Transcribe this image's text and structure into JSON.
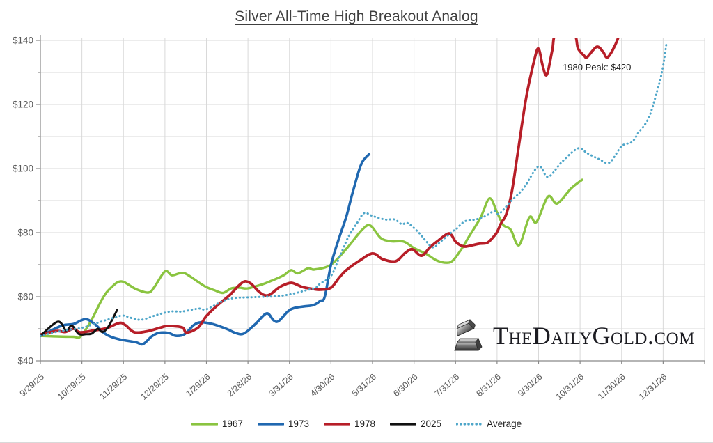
{
  "title": "Silver All-Time High Breakout Analog",
  "watermark": {
    "text": "TheDailyGold.com",
    "icon": "gold-ingot-icon"
  },
  "chart_data": {
    "type": "line",
    "title": "Silver All-Time High Breakout Analog",
    "xlabel": "",
    "ylabel": "",
    "x_unit": "months since 9/29/25",
    "xlim_months": [
      0,
      16
    ],
    "ylim": [
      40,
      140
    ],
    "y_major_step": 20,
    "y_minor_step": 10,
    "grid": "on",
    "legend_position": "bottom",
    "y_tick_labels": [
      "$40",
      "$60",
      "$80",
      "$100",
      "$120",
      "$140"
    ],
    "x_tick_labels": [
      "9/29/25",
      "10/29/25",
      "11/29/25",
      "12/29/25",
      "1/29/26",
      "2/28/26",
      "3/31/26",
      "4/30/26",
      "5/31/26",
      "6/30/26",
      "7/31/26",
      "8/31/26",
      "9/30/26",
      "10/31/26",
      "11/30/26",
      "12/31/26"
    ],
    "annotation": {
      "text": "1980 Peak: $420",
      "month": 12.58,
      "value": 130.6
    },
    "series": [
      {
        "name": "1967",
        "color": "#8AC440",
        "style": "solid",
        "width": 3.4,
        "points": [
          [
            0,
            47.8
          ],
          [
            0.4,
            47.6
          ],
          [
            0.8,
            47.5
          ],
          [
            0.96,
            47.5
          ],
          [
            1.2,
            52
          ],
          [
            1.5,
            59.5
          ],
          [
            1.7,
            62.8
          ],
          [
            1.95,
            64.8
          ],
          [
            2.3,
            62.4
          ],
          [
            2.6,
            61.3
          ],
          [
            2.75,
            63.1
          ],
          [
            3.0,
            67.9
          ],
          [
            3.17,
            66.7
          ],
          [
            3.35,
            67.3
          ],
          [
            3.5,
            67.2
          ],
          [
            3.8,
            64.6
          ],
          [
            4.0,
            63.0
          ],
          [
            4.2,
            62.0
          ],
          [
            4.4,
            61.2
          ],
          [
            4.6,
            62.6
          ],
          [
            4.8,
            62.8
          ],
          [
            5.0,
            62.6
          ],
          [
            5.35,
            63.9
          ],
          [
            5.57,
            65.0
          ],
          [
            5.86,
            66.7
          ],
          [
            6.04,
            68.3
          ],
          [
            6.2,
            67.3
          ],
          [
            6.45,
            68.9
          ],
          [
            6.6,
            68.5
          ],
          [
            7.0,
            70.0
          ],
          [
            7.4,
            75.4
          ],
          [
            7.75,
            80.9
          ],
          [
            7.95,
            82.2
          ],
          [
            8.2,
            78.3
          ],
          [
            8.45,
            77.3
          ],
          [
            8.75,
            77.2
          ],
          [
            9.0,
            75.2
          ],
          [
            9.3,
            73.3
          ],
          [
            9.55,
            71.3
          ],
          [
            9.8,
            70.6
          ],
          [
            9.95,
            71.5
          ],
          [
            10.15,
            75.0
          ],
          [
            10.32,
            78.7
          ],
          [
            10.6,
            84.6
          ],
          [
            10.82,
            90.7
          ],
          [
            11.0,
            86.3
          ],
          [
            11.15,
            82.4
          ],
          [
            11.33,
            80.9
          ],
          [
            11.53,
            76.1
          ],
          [
            11.78,
            84.8
          ],
          [
            11.95,
            83.3
          ],
          [
            12.23,
            91.3
          ],
          [
            12.45,
            89.1
          ],
          [
            12.79,
            93.9
          ],
          [
            13.05,
            96.5
          ]
        ]
      },
      {
        "name": "1973",
        "color": "#2068B0",
        "style": "solid",
        "width": 3.6,
        "points": [
          [
            0,
            47.8
          ],
          [
            0.5,
            50.9
          ],
          [
            0.8,
            51.5
          ],
          [
            1.09,
            53.0
          ],
          [
            1.34,
            51.1
          ],
          [
            1.51,
            48.9
          ],
          [
            1.68,
            47.6
          ],
          [
            1.91,
            46.7
          ],
          [
            2.3,
            45.8
          ],
          [
            2.47,
            45.2
          ],
          [
            2.68,
            47.6
          ],
          [
            2.85,
            48.7
          ],
          [
            3.09,
            48.7
          ],
          [
            3.26,
            47.8
          ],
          [
            3.47,
            48.3
          ],
          [
            3.69,
            51.1
          ],
          [
            3.86,
            52.0
          ],
          [
            4.14,
            51.5
          ],
          [
            4.48,
            50.0
          ],
          [
            4.7,
            48.7
          ],
          [
            4.9,
            48.5
          ],
          [
            5.18,
            51.5
          ],
          [
            5.45,
            54.8
          ],
          [
            5.62,
            52.6
          ],
          [
            5.74,
            52.4
          ],
          [
            5.96,
            55.4
          ],
          [
            6.12,
            56.5
          ],
          [
            6.36,
            57.0
          ],
          [
            6.58,
            57.4
          ],
          [
            6.74,
            58.7
          ],
          [
            6.85,
            60.0
          ],
          [
            7.0,
            70.0
          ],
          [
            7.2,
            78.5
          ],
          [
            7.37,
            85.0
          ],
          [
            7.5,
            91.5
          ],
          [
            7.62,
            97.0
          ],
          [
            7.7,
            100.4
          ],
          [
            7.78,
            102.6
          ],
          [
            7.92,
            104.5
          ]
        ]
      },
      {
        "name": "1978",
        "color": "#B71E28",
        "style": "solid",
        "width": 3.8,
        "points": [
          [
            0,
            48.2
          ],
          [
            0.4,
            49.3
          ],
          [
            0.6,
            49.0
          ],
          [
            0.8,
            50.0
          ],
          [
            0.96,
            48.9
          ],
          [
            1.3,
            49.5
          ],
          [
            1.6,
            50.2
          ],
          [
            1.9,
            51.8
          ],
          [
            2.05,
            51.1
          ],
          [
            2.27,
            48.9
          ],
          [
            2.6,
            49.3
          ],
          [
            2.9,
            50.4
          ],
          [
            3.09,
            50.9
          ],
          [
            3.42,
            50.4
          ],
          [
            3.52,
            48.8
          ],
          [
            3.8,
            50.4
          ],
          [
            4.0,
            54.0
          ],
          [
            4.28,
            57.5
          ],
          [
            4.56,
            60.5
          ],
          [
            4.78,
            63.5
          ],
          [
            4.93,
            64.8
          ],
          [
            5.07,
            64.1
          ],
          [
            5.23,
            62.0
          ],
          [
            5.37,
            60.6
          ],
          [
            5.52,
            60.6
          ],
          [
            5.74,
            62.8
          ],
          [
            5.91,
            63.9
          ],
          [
            6.07,
            64.3
          ],
          [
            6.32,
            63.0
          ],
          [
            6.58,
            62.4
          ],
          [
            6.74,
            62.2
          ],
          [
            7.0,
            62.8
          ],
          [
            7.2,
            66.0
          ],
          [
            7.37,
            68.3
          ],
          [
            7.67,
            71.1
          ],
          [
            8.0,
            73.5
          ],
          [
            8.25,
            71.7
          ],
          [
            8.56,
            71.1
          ],
          [
            8.79,
            73.7
          ],
          [
            8.96,
            74.8
          ],
          [
            9.18,
            72.8
          ],
          [
            9.38,
            75.4
          ],
          [
            9.55,
            77.2
          ],
          [
            9.8,
            79.6
          ],
          [
            9.9,
            79.3
          ],
          [
            10.0,
            77.2
          ],
          [
            10.15,
            75.9
          ],
          [
            10.27,
            75.7
          ],
          [
            10.55,
            76.5
          ],
          [
            10.77,
            76.9
          ],
          [
            10.94,
            79.1
          ],
          [
            11.0,
            80.2
          ],
          [
            11.1,
            83.0
          ],
          [
            11.22,
            85.7
          ],
          [
            11.36,
            93.0
          ],
          [
            11.5,
            105.0
          ],
          [
            11.7,
            122.0
          ],
          [
            11.9,
            134.0
          ],
          [
            12.0,
            137.4
          ],
          [
            12.1,
            132.0
          ],
          [
            12.2,
            129.3
          ],
          [
            12.33,
            137.0
          ],
          [
            12.42,
            141.8
          ],
          [
            12.85,
            141.8
          ],
          [
            12.95,
            137.5
          ],
          [
            13.1,
            135.2
          ],
          [
            13.17,
            134.8
          ],
          [
            13.4,
            138.0
          ],
          [
            13.55,
            136.5
          ],
          [
            13.67,
            134.8
          ],
          [
            13.9,
            140.2
          ],
          [
            14.0,
            146.0
          ]
        ]
      },
      {
        "name": "2025",
        "color": "#111111",
        "style": "solid",
        "width": 3.0,
        "points": [
          [
            0,
            47.8
          ],
          [
            0.42,
            52.2
          ],
          [
            0.62,
            49.5
          ],
          [
            0.76,
            51.0
          ],
          [
            0.92,
            48.4
          ],
          [
            1.1,
            48.3
          ],
          [
            1.24,
            48.5
          ],
          [
            1.38,
            50.0
          ],
          [
            1.49,
            49.0
          ],
          [
            1.63,
            50.5
          ],
          [
            1.85,
            55.9
          ]
        ]
      },
      {
        "name": "Average",
        "color": "#4EA6C9",
        "style": "dotted",
        "width": 3.0,
        "points": [
          [
            0,
            47.8
          ],
          [
            0.3,
            48.8
          ],
          [
            0.6,
            49.5
          ],
          [
            1.0,
            50.3
          ],
          [
            1.3,
            51.5
          ],
          [
            1.6,
            52.8
          ],
          [
            1.85,
            53.7
          ],
          [
            2.0,
            54.1
          ],
          [
            2.4,
            52.8
          ],
          [
            2.8,
            54.3
          ],
          [
            3.14,
            55.4
          ],
          [
            3.42,
            55.4
          ],
          [
            3.8,
            56.3
          ],
          [
            4.0,
            56.1
          ],
          [
            4.4,
            58.7
          ],
          [
            4.68,
            59.6
          ],
          [
            5.0,
            59.8
          ],
          [
            5.4,
            60.0
          ],
          [
            5.74,
            60.2
          ],
          [
            6.07,
            60.9
          ],
          [
            6.4,
            62.0
          ],
          [
            6.63,
            62.8
          ],
          [
            6.74,
            64.1
          ],
          [
            7.0,
            66.5
          ],
          [
            7.2,
            72.2
          ],
          [
            7.42,
            78.7
          ],
          [
            7.63,
            83.0
          ],
          [
            7.8,
            86.1
          ],
          [
            8.0,
            85.2
          ],
          [
            8.3,
            84.1
          ],
          [
            8.53,
            84.1
          ],
          [
            8.71,
            82.6
          ],
          [
            8.84,
            83.0
          ],
          [
            9.1,
            80.2
          ],
          [
            9.3,
            77.2
          ],
          [
            9.46,
            75.4
          ],
          [
            9.65,
            77.3
          ],
          [
            9.93,
            80.4
          ],
          [
            10.0,
            80.9
          ],
          [
            10.22,
            83.5
          ],
          [
            10.49,
            84.1
          ],
          [
            10.72,
            85.2
          ],
          [
            10.93,
            86.7
          ],
          [
            11.05,
            85.9
          ],
          [
            11.32,
            89.6
          ],
          [
            11.64,
            93.9
          ],
          [
            12.0,
            100.7
          ],
          [
            12.23,
            97.4
          ],
          [
            12.57,
            102.2
          ],
          [
            12.95,
            106.3
          ],
          [
            13.17,
            104.8
          ],
          [
            13.45,
            103.0
          ],
          [
            13.71,
            101.9
          ],
          [
            14.0,
            107.0
          ],
          [
            14.25,
            108.3
          ],
          [
            14.41,
            111.3
          ],
          [
            14.55,
            113.5
          ],
          [
            14.68,
            116.7
          ],
          [
            14.8,
            121.7
          ],
          [
            14.97,
            130.0
          ],
          [
            15.08,
            139.0
          ]
        ]
      }
    ],
    "colors": {
      "gridline": "#d9d9d9",
      "axis": "#898989",
      "tick_label": "#595959",
      "annotation_text": "#1a1a1a"
    }
  }
}
